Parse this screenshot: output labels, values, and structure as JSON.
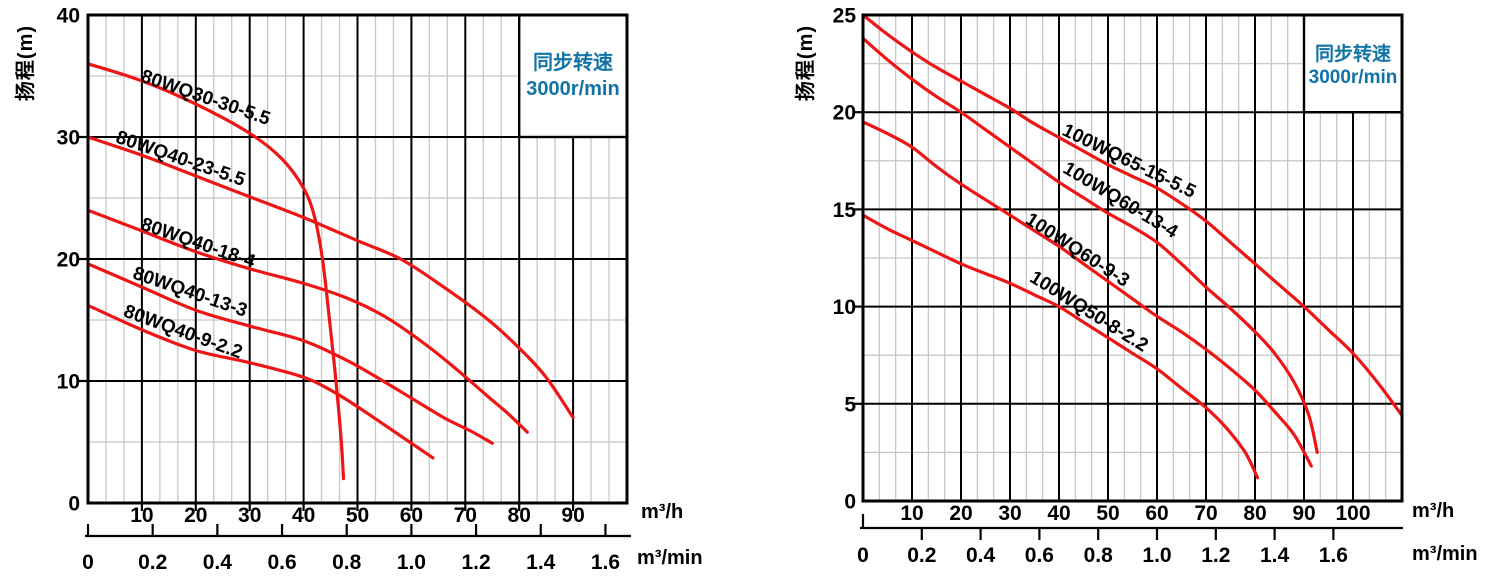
{
  "colors": {
    "curve_red": "#ed1515",
    "legend_blue": "#1173a6",
    "grid_major": "#000000",
    "grid_minor": "#c8c8c8",
    "background": "#ffffff"
  },
  "chart_data": [
    {
      "type": "line",
      "ylabel": "扬程(m)",
      "xlabel_primary": "m³/h",
      "xlabel_secondary": "m³/min",
      "legend": {
        "line1": "同步转速",
        "line2": "3000r/min"
      },
      "x_range_m3h": [
        0,
        100
      ],
      "y_range_m": [
        0,
        40
      ],
      "x_major_step": 10,
      "x_minor_divisions": 3,
      "y_major_step": 10,
      "y_minor_step": 5,
      "y_tick_labels": [
        0,
        10,
        20,
        30,
        40
      ],
      "x_tick_labels": [
        10,
        20,
        30,
        40,
        50,
        60,
        70,
        80,
        90
      ],
      "x2_tick_labels": [
        "0",
        "0.2",
        "0.4",
        "0.6",
        "0.8",
        "1.0",
        "1.2",
        "1.4",
        "1.6"
      ],
      "x2_unit_to_m3h": 60,
      "legend_box_data_rect": {
        "q0": 80,
        "q1": 100,
        "h0": 30,
        "h1": 40
      },
      "series": [
        {
          "name": "80WQ30-30-5.5",
          "points": [
            [
              0,
              36
            ],
            [
              10,
              34.6
            ],
            [
              20,
              32.7
            ],
            [
              30,
              30.3
            ],
            [
              36,
              28.2
            ],
            [
              40,
              25.8
            ],
            [
              42,
              23.5
            ],
            [
              43.5,
              20
            ],
            [
              44.8,
              15
            ],
            [
              46,
              10
            ],
            [
              47,
              5
            ],
            [
              47.4,
              2
            ]
          ]
        },
        {
          "name": "80WQ40-23-5.5",
          "points": [
            [
              0,
              30
            ],
            [
              10,
              28.5
            ],
            [
              20,
              26.8
            ],
            [
              30,
              25.1
            ],
            [
              40,
              23.4
            ],
            [
              50,
              21.5
            ],
            [
              58,
              20
            ],
            [
              66,
              17.7
            ],
            [
              74,
              15.1
            ],
            [
              80,
              12.7
            ],
            [
              85,
              10.3
            ],
            [
              90,
              7
            ]
          ]
        },
        {
          "name": "80WQ40-18-4",
          "points": [
            [
              0,
              24
            ],
            [
              10,
              22.3
            ],
            [
              20,
              20.6
            ],
            [
              30,
              19.2
            ],
            [
              40,
              18
            ],
            [
              48,
              16.8
            ],
            [
              55,
              15.3
            ],
            [
              62,
              13.2
            ],
            [
              68,
              11.1
            ],
            [
              74,
              8.8
            ],
            [
              78,
              7.3
            ],
            [
              81.5,
              5.8
            ]
          ]
        },
        {
          "name": "80WQ40-13-3",
          "points": [
            [
              0,
              19.6
            ],
            [
              10,
              17.7
            ],
            [
              20,
              15.8
            ],
            [
              30,
              14.5
            ],
            [
              40,
              13.3
            ],
            [
              48,
              11.7
            ],
            [
              54,
              10.2
            ],
            [
              60,
              8.6
            ],
            [
              66,
              7
            ],
            [
              71,
              5.9
            ],
            [
              75,
              4.9
            ]
          ]
        },
        {
          "name": "80WQ40-9-2.2",
          "points": [
            [
              0,
              16.2
            ],
            [
              10,
              14.2
            ],
            [
              20,
              12.5
            ],
            [
              30,
              11.5
            ],
            [
              40,
              10.3
            ],
            [
              46,
              9
            ],
            [
              52,
              7.3
            ],
            [
              58,
              5.5
            ],
            [
              64,
              3.7
            ]
          ]
        }
      ]
    },
    {
      "type": "line",
      "ylabel": "扬程(m)",
      "xlabel_primary": "m³/h",
      "xlabel_secondary": "m³/min",
      "legend": {
        "line1": "同步转速",
        "line2": "3000r/min"
      },
      "x_range_m3h": [
        0,
        110
      ],
      "y_range_m": [
        0,
        25
      ],
      "x_major_step": 10,
      "x_minor_divisions": 3,
      "y_major_step": 5,
      "y_minor_step": 2.5,
      "y_tick_labels": [
        0,
        5,
        10,
        15,
        20,
        25
      ],
      "x_tick_labels": [
        10,
        20,
        30,
        40,
        50,
        60,
        70,
        80,
        90,
        100
      ],
      "x2_tick_labels": [
        "0",
        "0.2",
        "0.4",
        "0.6",
        "0.8",
        "1.0",
        "1.2",
        "1.4",
        "1.6"
      ],
      "x2_unit_to_m3h": 60,
      "legend_box_data_rect": {
        "q0": 90,
        "q1": 110,
        "h0": 20,
        "h1": 25
      },
      "series": [
        {
          "name": "100WQ65-15-5.5",
          "points": [
            [
              0,
              25
            ],
            [
              5,
              24
            ],
            [
              10,
              23.1
            ],
            [
              15,
              22.3
            ],
            [
              20,
              21.6
            ],
            [
              25,
              20.9
            ],
            [
              30,
              20.2
            ],
            [
              35,
              19.4
            ],
            [
              40,
              18.7
            ],
            [
              45,
              18
            ],
            [
              50,
              17.3
            ],
            [
              55,
              16.7
            ],
            [
              60,
              16.1
            ],
            [
              65,
              15.3
            ],
            [
              70,
              14.4
            ],
            [
              75,
              13.3
            ],
            [
              80,
              12.2
            ],
            [
              85,
              11.1
            ],
            [
              90,
              10
            ],
            [
              95,
              8.8
            ],
            [
              100,
              7.6
            ],
            [
              105,
              6.1
            ],
            [
              110,
              4.4
            ]
          ]
        },
        {
          "name": "100WQ60-13-4",
          "points": [
            [
              0,
              23.8
            ],
            [
              5,
              22.7
            ],
            [
              10,
              21.7
            ],
            [
              15,
              20.8
            ],
            [
              20,
              20
            ],
            [
              25,
              19.1
            ],
            [
              30,
              18.2
            ],
            [
              35,
              17.3
            ],
            [
              40,
              16.4
            ],
            [
              45,
              15.6
            ],
            [
              50,
              14.8
            ],
            [
              55,
              14.1
            ],
            [
              60,
              13.3
            ],
            [
              65,
              12.2
            ],
            [
              70,
              11
            ],
            [
              75,
              9.9
            ],
            [
              80,
              8.7
            ],
            [
              84,
              7.6
            ],
            [
              88,
              6.1
            ],
            [
              91,
              4.4
            ],
            [
              92.7,
              2.5
            ]
          ]
        },
        {
          "name": "100WQ60-9-3",
          "points": [
            [
              0,
              19.5
            ],
            [
              5,
              18.9
            ],
            [
              10,
              18.2
            ],
            [
              15,
              17.2
            ],
            [
              20,
              16.3
            ],
            [
              25,
              15.5
            ],
            [
              30,
              14.7
            ],
            [
              35,
              13.9
            ],
            [
              40,
              13.1
            ],
            [
              45,
              12.2
            ],
            [
              50,
              11.3
            ],
            [
              55,
              10.4
            ],
            [
              60,
              9.5
            ],
            [
              65,
              8.7
            ],
            [
              70,
              7.8
            ],
            [
              75,
              6.8
            ],
            [
              80,
              5.7
            ],
            [
              84,
              4.6
            ],
            [
              88,
              3.4
            ],
            [
              91.5,
              1.8
            ]
          ]
        },
        {
          "name": "100WQ50-8-2.2",
          "points": [
            [
              0,
              14.7
            ],
            [
              5,
              14
            ],
            [
              10,
              13.4
            ],
            [
              15,
              12.8
            ],
            [
              20,
              12.2
            ],
            [
              25,
              11.7
            ],
            [
              30,
              11.2
            ],
            [
              35,
              10.6
            ],
            [
              40,
              10
            ],
            [
              45,
              9.2
            ],
            [
              50,
              8.4
            ],
            [
              55,
              7.6
            ],
            [
              60,
              6.8
            ],
            [
              65,
              5.8
            ],
            [
              70,
              4.8
            ],
            [
              74,
              3.8
            ],
            [
              78,
              2.5
            ],
            [
              80.5,
              1.2
            ]
          ]
        }
      ]
    }
  ]
}
